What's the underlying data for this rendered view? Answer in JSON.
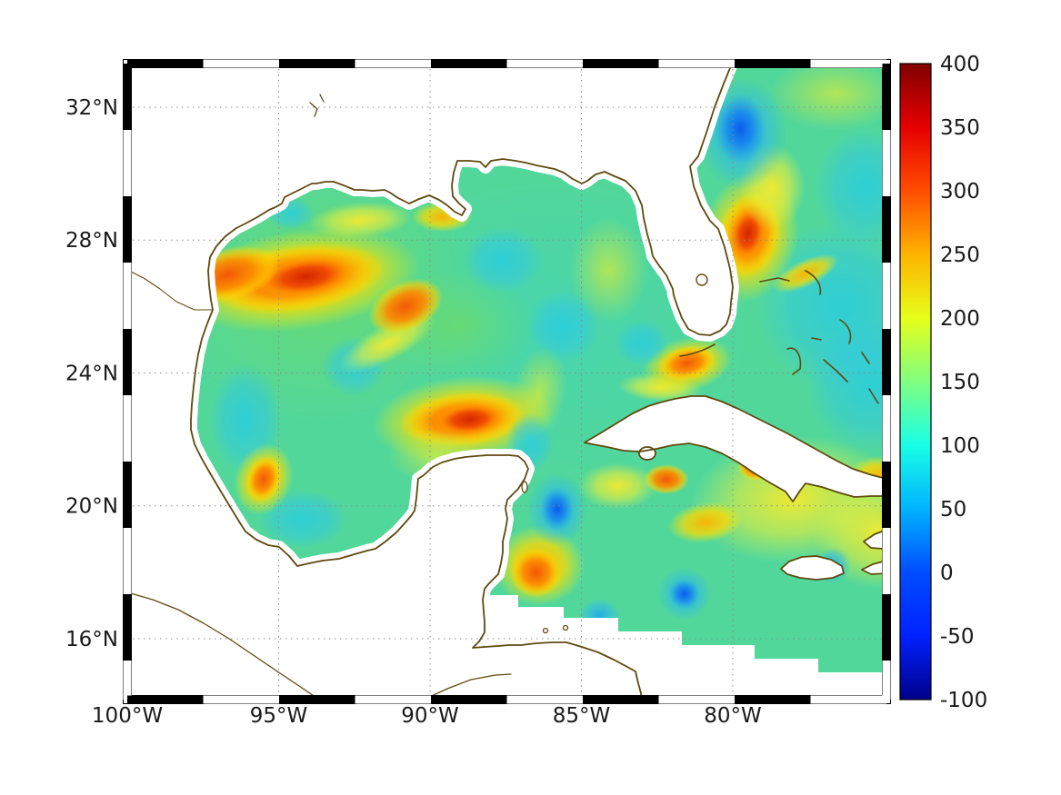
{
  "chart_data": {
    "type": "heatmap",
    "description_visible": "",
    "x_axis": {
      "tick_values_deg_west": [
        100,
        95,
        90,
        85,
        80
      ],
      "tick_labels": [
        "100°W",
        "95°W",
        "90°W",
        "85°W",
        "80°W"
      ]
    },
    "y_axis": {
      "tick_values_deg_north": [
        32,
        28,
        24,
        20,
        16
      ],
      "tick_labels": [
        "32°N",
        "28°N",
        "24°N",
        "20°N",
        "16°N"
      ]
    },
    "colorbar": {
      "min": -100,
      "max": 400,
      "tick_values": [
        400,
        350,
        300,
        250,
        200,
        150,
        100,
        50,
        0,
        -50,
        -100
      ],
      "tick_labels": [
        "400",
        "350",
        "300",
        "250",
        "200",
        "150",
        "100",
        "50",
        "0",
        "-50",
        "-100"
      ],
      "colormap": "jet",
      "gradient_colors_top_to_bottom": [
        "#800000",
        "#e60000",
        "#ff4d00",
        "#ffb300",
        "#e6ff19",
        "#80ff80",
        "#19ffe6",
        "#00b3ff",
        "#004dff",
        "#0021ff",
        "#000089"
      ]
    },
    "base_field_value": 130,
    "base_field_color": "#52d79b",
    "field_features": [
      {
        "lon_w": 86.0,
        "lat_n": 25.3,
        "value": 120,
        "kind": "teal",
        "rx": 6.5,
        "ry": 4.5,
        "rot": 0
      },
      {
        "lon_w": 93.5,
        "lat_n": 26.5,
        "value": 160,
        "kind": "green",
        "rx": 5.5,
        "ry": 4.0,
        "rot": 0
      },
      {
        "lon_w": 78.0,
        "lat_n": 20.2,
        "value": 195,
        "kind": "yellow",
        "rx": 3.4,
        "ry": 1.9,
        "rot": -5
      },
      {
        "lon_w": 75.2,
        "lat_n": 19.2,
        "value": 200,
        "kind": "yellow",
        "rx": 2.2,
        "ry": 1.7,
        "rot": 0
      },
      {
        "lon_w": 76.4,
        "lat_n": 26.0,
        "value": 110,
        "kind": "cyan",
        "rx": 2.8,
        "ry": 2.6,
        "rot": 0
      },
      {
        "lon_w": 75.4,
        "lat_n": 23.6,
        "value": 115,
        "kind": "cyan",
        "rx": 2.2,
        "ry": 2.0,
        "rot": 0
      },
      {
        "lon_w": 75.6,
        "lat_n": 29.6,
        "value": 115,
        "kind": "cyan",
        "rx": 1.7,
        "ry": 1.8,
        "rot": 0
      },
      {
        "lon_w": 76.6,
        "lat_n": 32.4,
        "value": 190,
        "kind": "ygreen",
        "rx": 2.2,
        "ry": 1.1,
        "rot": 0
      },
      {
        "lon_w": 89.0,
        "lat_n": 25.4,
        "value": 170,
        "kind": "green",
        "rx": 2.5,
        "ry": 1.7,
        "rot": 0
      },
      {
        "lon_w": 92.3,
        "lat_n": 28.6,
        "value": 200,
        "kind": "yellow",
        "rx": 1.7,
        "ry": 0.55,
        "rot": -4
      },
      {
        "lon_w": 89.6,
        "lat_n": 28.7,
        "value": 210,
        "kind": "amber",
        "rx": 1.0,
        "ry": 0.45,
        "rot": 0
      },
      {
        "lon_w": 96.1,
        "lat_n": 22.6,
        "value": 100,
        "kind": "cyan",
        "rx": 1.2,
        "ry": 1.7,
        "rot": 0
      },
      {
        "lon_w": 94.2,
        "lat_n": 19.6,
        "value": 110,
        "kind": "cyan",
        "rx": 1.5,
        "ry": 0.9,
        "rot": 0
      },
      {
        "lon_w": 84.1,
        "lat_n": 27.1,
        "value": 180,
        "kind": "ygreen",
        "rx": 1.3,
        "ry": 1.6,
        "rot": 0
      },
      {
        "lon_w": 87.6,
        "lat_n": 27.4,
        "value": 120,
        "kind": "cyan",
        "rx": 1.35,
        "ry": 1.0,
        "rot": 0
      },
      {
        "lon_w": 92.5,
        "lat_n": 24.2,
        "value": 105,
        "kind": "cyan",
        "rx": 1.1,
        "ry": 0.9,
        "rot": 0
      },
      {
        "lon_w": 85.6,
        "lat_n": 25.4,
        "value": 120,
        "kind": "cyan",
        "rx": 1.2,
        "ry": 1.1,
        "rot": 0
      },
      {
        "lon_w": 91.4,
        "lat_n": 24.9,
        "value": 190,
        "kind": "yellow",
        "rx": 1.8,
        "ry": 0.55,
        "rot": -28
      },
      {
        "lon_w": 86.4,
        "lat_n": 23.4,
        "value": 175,
        "kind": "ygreen",
        "rx": 0.9,
        "ry": 1.4,
        "rot": 10
      },
      {
        "lon_w": 82.4,
        "lat_n": 23.55,
        "value": 210,
        "kind": "yellow",
        "rx": 1.4,
        "ry": 0.42,
        "rot": 4
      },
      {
        "lon_w": 77.6,
        "lat_n": 27.0,
        "value": 245,
        "kind": "amber",
        "rx": 1.2,
        "ry": 0.4,
        "rot": -25
      },
      {
        "lon_w": 94.3,
        "lat_n": 26.8,
        "value": 230,
        "kind": "amber",
        "rx": 4.0,
        "ry": 1.5,
        "rot": -8
      },
      {
        "lon_w": 94.4,
        "lat_n": 26.85,
        "value": 310,
        "kind": "orange",
        "rx": 3.0,
        "ry": 1.0,
        "rot": -8
      },
      {
        "lon_w": 94.1,
        "lat_n": 26.9,
        "value": 330,
        "kind": "red",
        "rx": 1.7,
        "ry": 0.62,
        "rot": -8
      },
      {
        "lon_w": 96.7,
        "lat_n": 26.95,
        "value": 280,
        "kind": "orange",
        "rx": 1.8,
        "ry": 0.8,
        "rot": -15
      },
      {
        "lon_w": 90.8,
        "lat_n": 26.0,
        "value": 260,
        "kind": "orange",
        "rx": 1.3,
        "ry": 0.75,
        "rot": -25
      },
      {
        "lon_w": 88.9,
        "lat_n": 22.6,
        "value": 225,
        "kind": "amber",
        "rx": 3.0,
        "ry": 1.3,
        "rot": -5
      },
      {
        "lon_w": 88.9,
        "lat_n": 22.6,
        "value": 295,
        "kind": "orange",
        "rx": 2.1,
        "ry": 0.8,
        "rot": -5
      },
      {
        "lon_w": 88.7,
        "lat_n": 22.6,
        "value": 315,
        "kind": "red",
        "rx": 1.2,
        "ry": 0.5,
        "rot": -5
      },
      {
        "lon_w": 79.45,
        "lat_n": 28.1,
        "value": 230,
        "kind": "amber",
        "rx": 1.6,
        "ry": 2.0,
        "rot": 12
      },
      {
        "lon_w": 79.45,
        "lat_n": 28.15,
        "value": 330,
        "kind": "orange",
        "rx": 1.0,
        "ry": 1.3,
        "rot": 12
      },
      {
        "lon_w": 79.5,
        "lat_n": 28.2,
        "value": 355,
        "kind": "red",
        "rx": 0.62,
        "ry": 0.85,
        "rot": 12
      },
      {
        "lon_w": 78.7,
        "lat_n": 29.6,
        "value": 205,
        "kind": "yellow",
        "rx": 1.1,
        "ry": 1.3,
        "rot": 0
      },
      {
        "lon_w": 81.5,
        "lat_n": 24.25,
        "value": 230,
        "kind": "amber",
        "rx": 1.5,
        "ry": 0.8,
        "rot": -12
      },
      {
        "lon_w": 81.5,
        "lat_n": 24.3,
        "value": 300,
        "kind": "orange",
        "rx": 0.95,
        "ry": 0.5,
        "rot": -12
      },
      {
        "lon_w": 95.5,
        "lat_n": 20.8,
        "value": 240,
        "kind": "amber",
        "rx": 0.95,
        "ry": 1.1,
        "rot": 18
      },
      {
        "lon_w": 95.5,
        "lat_n": 20.8,
        "value": 265,
        "kind": "orange",
        "rx": 0.55,
        "ry": 0.7,
        "rot": 18
      },
      {
        "lon_w": 80.9,
        "lat_n": 19.5,
        "value": 230,
        "kind": "amber",
        "rx": 1.25,
        "ry": 0.6,
        "rot": -8
      },
      {
        "lon_w": 82.2,
        "lat_n": 20.8,
        "value": 255,
        "kind": "orange",
        "rx": 0.75,
        "ry": 0.45,
        "rot": 0
      },
      {
        "lon_w": 79.2,
        "lat_n": 21.15,
        "value": 250,
        "kind": "orange",
        "rx": 0.65,
        "ry": 0.4,
        "rot": 0
      },
      {
        "lon_w": 86.4,
        "lat_n": 18.2,
        "value": 220,
        "kind": "amber",
        "rx": 1.5,
        "ry": 1.2,
        "rot": 0
      },
      {
        "lon_w": 86.5,
        "lat_n": 18.0,
        "value": 255,
        "kind": "orange",
        "rx": 0.85,
        "ry": 0.75,
        "rot": 0
      },
      {
        "lon_w": 75.2,
        "lat_n": 20.9,
        "value": 245,
        "kind": "amber",
        "rx": 0.95,
        "ry": 0.6,
        "rot": 0
      },
      {
        "lon_w": 83.8,
        "lat_n": 20.6,
        "value": 215,
        "kind": "yellow",
        "rx": 1.3,
        "ry": 0.7,
        "rot": 0
      },
      {
        "lon_w": 79.7,
        "lat_n": 31.2,
        "value": 90,
        "kind": "skyblue",
        "rx": 1.5,
        "ry": 1.7,
        "rot": 0
      },
      {
        "lon_w": 79.75,
        "lat_n": 31.35,
        "value": 45,
        "kind": "blue",
        "rx": 0.85,
        "ry": 1.05,
        "rot": 0
      },
      {
        "lon_w": 85.8,
        "lat_n": 19.9,
        "value": 90,
        "kind": "skyblue",
        "rx": 1.0,
        "ry": 1.1,
        "rot": 0
      },
      {
        "lon_w": 85.8,
        "lat_n": 19.9,
        "value": 60,
        "kind": "blue",
        "rx": 0.55,
        "ry": 0.65,
        "rot": 0
      },
      {
        "lon_w": 81.6,
        "lat_n": 17.35,
        "value": 85,
        "kind": "skyblue",
        "rx": 0.9,
        "ry": 0.8,
        "rot": 0
      },
      {
        "lon_w": 81.6,
        "lat_n": 17.35,
        "value": 55,
        "kind": "blue",
        "rx": 0.5,
        "ry": 0.45,
        "rot": 0
      },
      {
        "lon_w": 86.7,
        "lat_n": 21.9,
        "value": 100,
        "kind": "cyan",
        "rx": 0.8,
        "ry": 0.9,
        "rot": 0
      },
      {
        "lon_w": 84.4,
        "lat_n": 16.7,
        "value": 90,
        "kind": "skyblue",
        "rx": 0.7,
        "ry": 0.5,
        "rot": 0
      },
      {
        "lon_w": 76.7,
        "lat_n": 18.2,
        "value": 85,
        "kind": "skyblue",
        "rx": 0.6,
        "ry": 0.55,
        "rot": 0
      },
      {
        "lon_w": 94.6,
        "lat_n": 28.8,
        "value": 110,
        "kind": "cyan",
        "rx": 0.8,
        "ry": 0.5,
        "rot": 0
      },
      {
        "lon_w": 83.0,
        "lat_n": 24.9,
        "value": 115,
        "kind": "cyan",
        "rx": 0.9,
        "ry": 0.7,
        "rot": 0
      },
      {
        "lon_w": 89.8,
        "lat_n": 21.5,
        "value": 175,
        "kind": "ygreen",
        "rx": 1.6,
        "ry": 0.8,
        "rot": 0
      }
    ]
  },
  "colors": {
    "coastline": "#5e4a10",
    "land": "#ffffff",
    "graticule": "#8c8c8c",
    "frame": "#000000",
    "background": "#ffffff"
  }
}
